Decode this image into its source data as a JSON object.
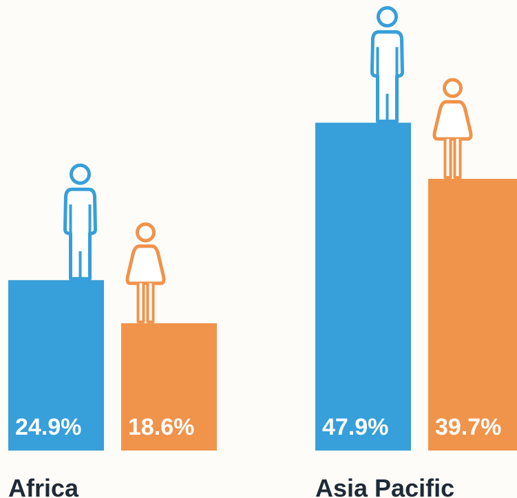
{
  "chart_data": {
    "type": "bar",
    "categories": [
      "Africa",
      "Asia Pacific"
    ],
    "series": [
      {
        "color": "#379fd9",
        "values": [
          24.9,
          47.9
        ],
        "value_labels": [
          "24.9%",
          "47.9%"
        ]
      },
      {
        "color": "#f0934b",
        "values": [
          18.6,
          39.7
        ],
        "value_labels": [
          "18.6%",
          "39.7%"
        ]
      }
    ]
  }
}
